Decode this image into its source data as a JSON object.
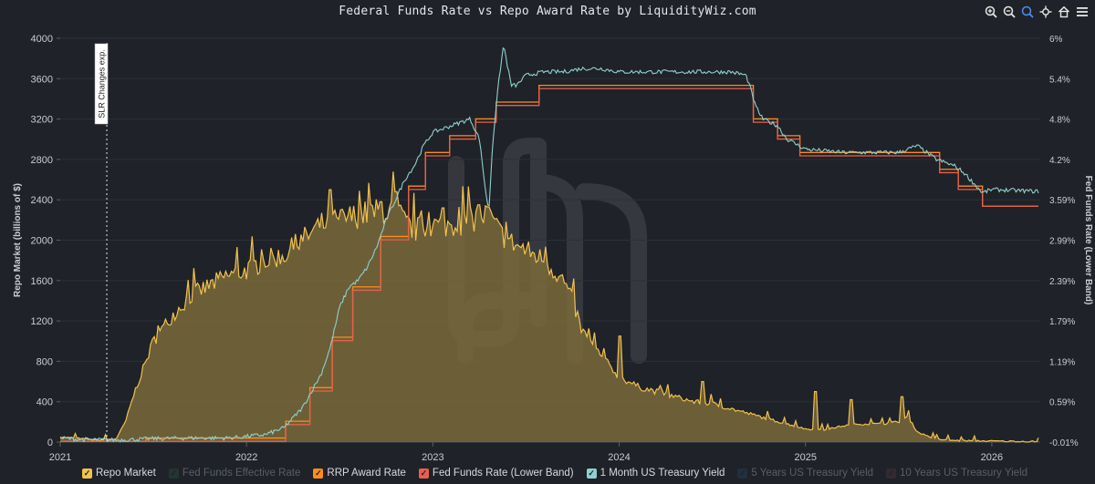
{
  "title": "Federal Funds Rate vs Repo Award Rate by LiquidityWiz.com",
  "toolbar": [
    {
      "name": "zoom-in-icon"
    },
    {
      "name": "zoom-out-icon"
    },
    {
      "name": "zoom-select-icon"
    },
    {
      "name": "pan-icon"
    },
    {
      "name": "home-icon"
    },
    {
      "name": "menu-icon"
    }
  ],
  "colors": {
    "background": "#1f2228",
    "repo": "#f2c14e",
    "repo_fill": "#7a6a3a",
    "rrp": "#ff8c1a",
    "fed_lower": "#e8604c",
    "tbill": "#8fd0d0",
    "effective": "#2d5a40",
    "y5": "#254a6a",
    "y10": "#5a3a44"
  },
  "legend": [
    {
      "label": "Repo Market",
      "color": "#f2c14e",
      "on": true
    },
    {
      "label": "Fed Funds Effective Rate",
      "color": "#2d5a40",
      "on": false
    },
    {
      "label": "RRP Award Rate",
      "color": "#ff8c1a",
      "on": true
    },
    {
      "label": "Fed Funds Rate (Lower Band)",
      "color": "#e8604c",
      "on": true
    },
    {
      "label": "1 Month US Treasury Yield",
      "color": "#8fd0d0",
      "on": true
    },
    {
      "label": "5 Years US Treasury Yield",
      "color": "#254a6a",
      "on": false
    },
    {
      "label": "10 Years US Treasury Yield",
      "color": "#5a3a44",
      "on": false
    }
  ],
  "chart_data": {
    "type": "area",
    "title": "Federal Funds Rate vs Repo Award Rate by LiquidityWiz.com",
    "xlabel": "",
    "ylabel": "Repo Market (billions of $)",
    "y2label": "Fed Funds Rate (Lower Band)",
    "xlim": [
      2021.0,
      2026.26
    ],
    "x_ticks": [
      "2021",
      "2022",
      "2023",
      "2024",
      "2025",
      "2026"
    ],
    "ylim": [
      0,
      4000
    ],
    "y_ticks": [
      "0",
      "400",
      "800",
      "1200",
      "1600",
      "2000",
      "2400",
      "2800",
      "3200",
      "3600",
      "4000"
    ],
    "y2lim": [
      -0.01,
      6.0
    ],
    "y2_ticks": [
      "-0.01%",
      "0.59%",
      "1.19%",
      "1.79%",
      "2.39%",
      "2.99%",
      "3.59%",
      "4.2%",
      "4.8%",
      "5.4%",
      "6%"
    ],
    "grid": true,
    "legend_position": "bottom-left",
    "annotations": [
      {
        "x": 2021.25,
        "text": "SLR Changes exp."
      }
    ],
    "series": [
      {
        "name": "Repo Market",
        "axis": "left",
        "points": [
          [
            2021.0,
            50
          ],
          [
            2021.2,
            20
          ],
          [
            2021.3,
            30
          ],
          [
            2021.35,
            200
          ],
          [
            2021.4,
            500
          ],
          [
            2021.45,
            750
          ],
          [
            2021.5,
            1000
          ],
          [
            2021.6,
            1250
          ],
          [
            2021.7,
            1450
          ],
          [
            2021.8,
            1550
          ],
          [
            2021.9,
            1650
          ],
          [
            2022.0,
            1700
          ],
          [
            2022.1,
            1800
          ],
          [
            2022.2,
            1850
          ],
          [
            2022.3,
            2000
          ],
          [
            2022.4,
            2150
          ],
          [
            2022.5,
            2200
          ],
          [
            2022.6,
            2250
          ],
          [
            2022.7,
            2280
          ],
          [
            2022.8,
            2300
          ],
          [
            2022.85,
            2180
          ],
          [
            2022.9,
            2100
          ],
          [
            2023.0,
            2150
          ],
          [
            2023.1,
            2150
          ],
          [
            2023.2,
            2200
          ],
          [
            2023.3,
            2250
          ],
          [
            2023.35,
            2100
          ],
          [
            2023.4,
            2000
          ],
          [
            2023.5,
            1900
          ],
          [
            2023.6,
            1800
          ],
          [
            2023.7,
            1600
          ],
          [
            2023.75,
            1400
          ],
          [
            2023.8,
            1100
          ],
          [
            2023.9,
            850
          ],
          [
            2024.0,
            650
          ],
          [
            2024.1,
            550
          ],
          [
            2024.2,
            500
          ],
          [
            2024.3,
            450
          ],
          [
            2024.4,
            400
          ],
          [
            2024.5,
            380
          ],
          [
            2024.6,
            330
          ],
          [
            2024.7,
            280
          ],
          [
            2024.8,
            230
          ],
          [
            2024.9,
            180
          ],
          [
            2025.0,
            130
          ],
          [
            2025.1,
            120
          ],
          [
            2025.2,
            160
          ],
          [
            2025.3,
            180
          ],
          [
            2025.4,
            180
          ],
          [
            2025.5,
            200
          ],
          [
            2025.55,
            250
          ],
          [
            2025.6,
            100
          ],
          [
            2025.7,
            30
          ],
          [
            2025.8,
            15
          ],
          [
            2026.0,
            10
          ],
          [
            2026.25,
            5
          ]
        ],
        "spikes": [
          [
            2022.45,
            2500
          ],
          [
            2022.72,
            2380
          ],
          [
            2022.8,
            2480
          ],
          [
            2023.05,
            2320
          ],
          [
            2023.25,
            2350
          ],
          [
            2023.3,
            2330
          ],
          [
            2024.0,
            1050
          ],
          [
            2024.45,
            600
          ],
          [
            2025.05,
            500
          ],
          [
            2025.52,
            450
          ],
          [
            2025.25,
            420
          ]
        ]
      },
      {
        "name": "RRP Award Rate",
        "axis": "right",
        "steps": [
          [
            2021.0,
            0.0
          ],
          [
            2021.46,
            0.05
          ],
          [
            2022.21,
            0.3
          ],
          [
            2022.34,
            0.8
          ],
          [
            2022.46,
            1.55
          ],
          [
            2022.57,
            2.3
          ],
          [
            2022.72,
            3.05
          ],
          [
            2022.87,
            3.8
          ],
          [
            2022.96,
            4.3
          ],
          [
            2023.09,
            4.55
          ],
          [
            2023.23,
            4.8
          ],
          [
            2023.34,
            5.05
          ],
          [
            2023.57,
            5.3
          ],
          [
            2024.72,
            4.8
          ],
          [
            2024.85,
            4.55
          ],
          [
            2024.97,
            4.3
          ],
          [
            2025.72,
            4.05
          ],
          [
            2025.82,
            3.8
          ],
          [
            2025.95,
            3.5
          ],
          [
            2026.25,
            3.5
          ]
        ]
      },
      {
        "name": "Fed Funds Rate (Lower Band)",
        "axis": "right",
        "steps": [
          [
            2021.0,
            0.0
          ],
          [
            2022.21,
            0.25
          ],
          [
            2022.34,
            0.75
          ],
          [
            2022.46,
            1.5
          ],
          [
            2022.57,
            2.25
          ],
          [
            2022.72,
            3.0
          ],
          [
            2022.87,
            3.75
          ],
          [
            2022.96,
            4.25
          ],
          [
            2023.09,
            4.5
          ],
          [
            2023.23,
            4.75
          ],
          [
            2023.34,
            5.0
          ],
          [
            2023.57,
            5.25
          ],
          [
            2024.72,
            4.75
          ],
          [
            2024.85,
            4.5
          ],
          [
            2024.97,
            4.25
          ],
          [
            2025.72,
            4.0
          ],
          [
            2025.82,
            3.75
          ],
          [
            2025.95,
            3.5
          ],
          [
            2026.25,
            3.5
          ]
        ]
      },
      {
        "name": "1 Month US Treasury Yield",
        "axis": "right",
        "points": [
          [
            2021.0,
            0.05
          ],
          [
            2021.1,
            0.03
          ],
          [
            2021.3,
            0.02
          ],
          [
            2021.5,
            0.04
          ],
          [
            2021.7,
            0.05
          ],
          [
            2021.9,
            0.05
          ],
          [
            2022.1,
            0.1
          ],
          [
            2022.2,
            0.2
          ],
          [
            2022.3,
            0.5
          ],
          [
            2022.4,
            1.0
          ],
          [
            2022.45,
            1.4
          ],
          [
            2022.5,
            2.0
          ],
          [
            2022.55,
            2.3
          ],
          [
            2022.6,
            2.4
          ],
          [
            2022.65,
            2.6
          ],
          [
            2022.7,
            2.9
          ],
          [
            2022.75,
            3.3
          ],
          [
            2022.8,
            3.6
          ],
          [
            2022.85,
            3.9
          ],
          [
            2022.9,
            4.1
          ],
          [
            2022.95,
            4.4
          ],
          [
            2023.0,
            4.6
          ],
          [
            2023.1,
            4.7
          ],
          [
            2023.2,
            4.8
          ],
          [
            2023.25,
            4.5
          ],
          [
            2023.28,
            3.8
          ],
          [
            2023.3,
            3.4
          ],
          [
            2023.32,
            4.4
          ],
          [
            2023.34,
            5.0
          ],
          [
            2023.36,
            5.5
          ],
          [
            2023.38,
            5.9
          ],
          [
            2023.4,
            5.6
          ],
          [
            2023.42,
            5.3
          ],
          [
            2023.45,
            5.3
          ],
          [
            2023.5,
            5.45
          ],
          [
            2023.6,
            5.5
          ],
          [
            2023.7,
            5.5
          ],
          [
            2023.8,
            5.55
          ],
          [
            2023.9,
            5.55
          ],
          [
            2024.0,
            5.5
          ],
          [
            2024.2,
            5.5
          ],
          [
            2024.4,
            5.5
          ],
          [
            2024.6,
            5.5
          ],
          [
            2024.68,
            5.45
          ],
          [
            2024.7,
            5.3
          ],
          [
            2024.73,
            5.0
          ],
          [
            2024.77,
            4.8
          ],
          [
            2024.85,
            4.7
          ],
          [
            2024.9,
            4.5
          ],
          [
            2025.0,
            4.35
          ],
          [
            2025.2,
            4.3
          ],
          [
            2025.4,
            4.3
          ],
          [
            2025.5,
            4.3
          ],
          [
            2025.6,
            4.4
          ],
          [
            2025.65,
            4.3
          ],
          [
            2025.7,
            4.2
          ],
          [
            2025.8,
            4.1
          ],
          [
            2025.85,
            4.0
          ],
          [
            2025.9,
            3.85
          ],
          [
            2025.95,
            3.7
          ],
          [
            2026.0,
            3.75
          ],
          [
            2026.25,
            3.72
          ]
        ]
      }
    ]
  }
}
